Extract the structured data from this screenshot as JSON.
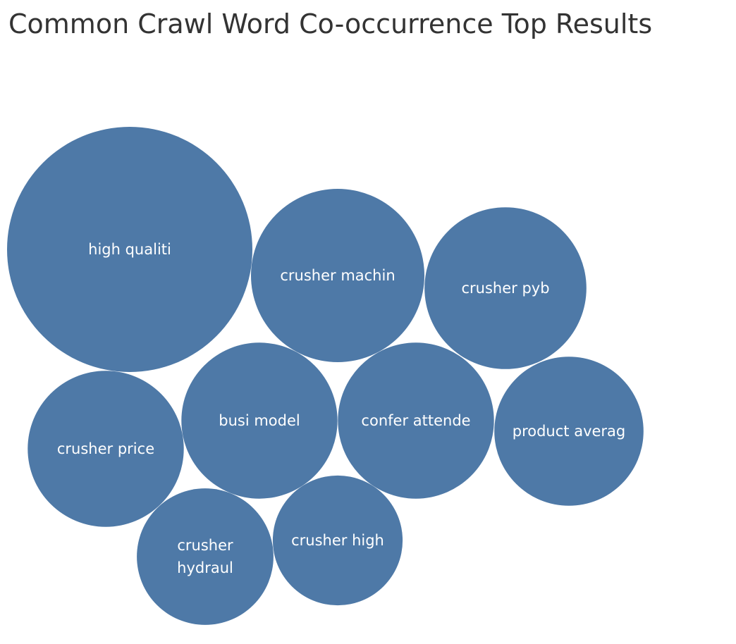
{
  "chart_data": {
    "type": "bubble",
    "title": "Common Crawl Word Co-occurrence Top Results",
    "color": "#4e79a7",
    "label_color": "#ffffff",
    "items": [
      {
        "label": "high qualiti",
        "lines": [
          "high qualiti"
        ],
        "size": 100
      },
      {
        "label": "crusher machin",
        "lines": [
          "crusher machin"
        ],
        "size": 50
      },
      {
        "label": "crusher pyb",
        "lines": [
          "crusher pyb"
        ],
        "size": 43.5
      },
      {
        "label": "product averag",
        "lines": [
          "product averag"
        ],
        "size": 37
      },
      {
        "label": "crusher price",
        "lines": [
          "crusher price"
        ],
        "size": 40.5
      },
      {
        "label": "busi model",
        "lines": [
          "busi model"
        ],
        "size": 40.5
      },
      {
        "label": "confer attende",
        "lines": [
          "confer attende"
        ],
        "size": 40.5
      },
      {
        "label": "crusher hydraul",
        "lines": [
          "crusher",
          "hydraul"
        ],
        "size": 31
      },
      {
        "label": "crusher high",
        "lines": [
          "crusher high"
        ],
        "size": 28
      }
    ]
  }
}
